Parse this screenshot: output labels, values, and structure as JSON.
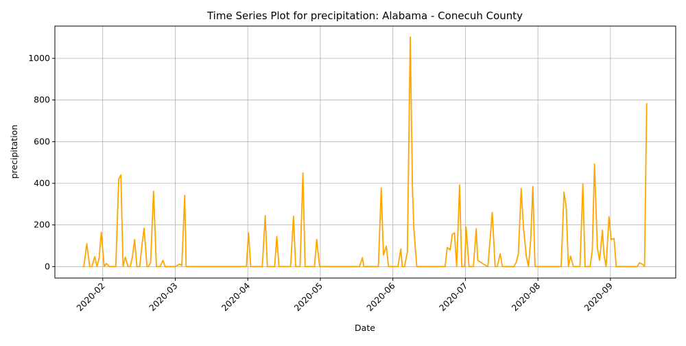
{
  "chart_data": {
    "type": "line",
    "title": "Time Series Plot for precipitation: Alabama - Conecuh County",
    "x_label": "Date",
    "y_label": "precipitation",
    "x": [
      1.72,
      1.74,
      1.78,
      1.82,
      1.85,
      1.89,
      1.92,
      1.95,
      1.98,
      2.02,
      2.05,
      2.09,
      2.15,
      2.18,
      2.22,
      2.25,
      2.28,
      2.31,
      2.35,
      2.38,
      2.41,
      2.44,
      2.47,
      2.51,
      2.54,
      2.57,
      2.61,
      2.63,
      2.66,
      2.7,
      2.74,
      2.79,
      2.83,
      2.86,
      2.99,
      3.03,
      3.06,
      3.09,
      3.13,
      3.15,
      3.98,
      4.01,
      4.04,
      4.2,
      4.24,
      4.27,
      4.37,
      4.4,
      4.43,
      4.59,
      4.63,
      4.66,
      4.72,
      4.76,
      4.79,
      4.92,
      4.95,
      4.99,
      5.54,
      5.58,
      5.6,
      5.8,
      5.84,
      5.87,
      5.91,
      5.94,
      6.07,
      6.11,
      6.13,
      6.16,
      6.2,
      6.24,
      6.27,
      6.29,
      6.33,
      6.72,
      6.75,
      6.79,
      6.82,
      6.85,
      6.88,
      6.92,
      6.95,
      6.99,
      7.01,
      7.05,
      7.11,
      7.15,
      7.17,
      7.28,
      7.31,
      7.35,
      7.37,
      7.41,
      7.44,
      7.48,
      7.51,
      7.67,
      7.7,
      7.73,
      7.77,
      7.8,
      7.84,
      7.87,
      7.9,
      7.93,
      7.96,
      8.32,
      8.36,
      8.39,
      8.42,
      8.45,
      8.49,
      8.58,
      8.62,
      8.65,
      8.72,
      8.75,
      8.78,
      8.82,
      8.85,
      8.89,
      8.91,
      8.94,
      8.98,
      9.01,
      9.05,
      9.08,
      9.37,
      9.4,
      9.44,
      9.47,
      9.5
    ],
    "series": [
      {
        "name": "precipitation",
        "color": "#ffa500",
        "values": [
          0,
          0,
          110,
          0,
          0,
          48,
          0,
          40,
          165,
          0,
          15,
          0,
          0,
          0,
          420,
          440,
          0,
          45,
          0,
          0,
          50,
          130,
          0,
          0,
          100,
          185,
          0,
          0,
          20,
          362,
          0,
          0,
          30,
          0,
          0,
          5,
          12,
          5,
          342,
          0,
          0,
          162,
          0,
          0,
          245,
          0,
          0,
          145,
          0,
          0,
          242,
          0,
          0,
          450,
          0,
          0,
          130,
          0,
          0,
          43,
          0,
          0,
          378,
          55,
          98,
          0,
          0,
          85,
          0,
          0,
          70,
          1103,
          380,
          180,
          0,
          0,
          92,
          80,
          155,
          162,
          0,
          392,
          0,
          0,
          190,
          0,
          0,
          182,
          30,
          5,
          0,
          170,
          260,
          0,
          0,
          62,
          0,
          0,
          20,
          60,
          375,
          190,
          50,
          0,
          125,
          385,
          0,
          0,
          358,
          285,
          0,
          50,
          0,
          0,
          398,
          0,
          0,
          80,
          493,
          90,
          30,
          175,
          60,
          0,
          240,
          130,
          135,
          0,
          0,
          18,
          12,
          0,
          785
        ]
      }
    ],
    "xlim": [
      1.34,
      9.9
    ],
    "xticks": [
      {
        "value": 2,
        "label": "2020-02"
      },
      {
        "value": 3,
        "label": "2020-03"
      },
      {
        "value": 4,
        "label": "2020-04"
      },
      {
        "value": 5,
        "label": "2020-05"
      },
      {
        "value": 6,
        "label": "2020-06"
      },
      {
        "value": 7,
        "label": "2020-07"
      },
      {
        "value": 8,
        "label": "2020-08"
      },
      {
        "value": 9,
        "label": "2020-09"
      }
    ],
    "ylim": [
      -55,
      1155
    ],
    "yticks": [
      0,
      200,
      400,
      600,
      800,
      1000
    ],
    "grid": true
  }
}
